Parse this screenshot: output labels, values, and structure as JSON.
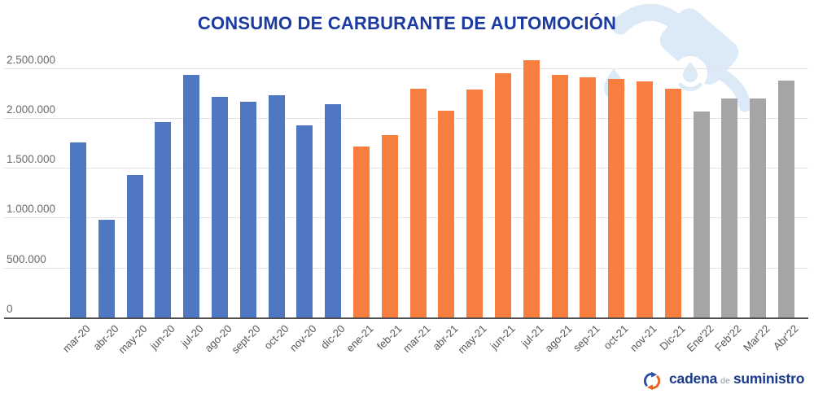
{
  "title": "CONSUMO DE CARBURANTE DE AUTOMOCIÓN",
  "colors": {
    "title": "#1b3aa2",
    "bar_2020": "#5078c2",
    "bar_2021": "#f77e3e",
    "bar_2022": "#a5a5a5",
    "gridline": "#e4e4e4",
    "axis_line": "#4f4f4f",
    "y_label_text": "#6b6b6b",
    "x_label_text": "#565656",
    "watermark": "#dce9f6",
    "logo_blue": "#1a3a8c",
    "logo_gray": "#8c98a8",
    "logo_icon_blue": "#2d4ea3",
    "logo_icon_orange": "#e9631d"
  },
  "chart_data": {
    "type": "bar",
    "title": "CONSUMO DE CARBURANTE DE AUTOMOCIÓN",
    "xlabel": "",
    "ylabel": "",
    "ylim": [
      0,
      2500000
    ],
    "grid": true,
    "legend": "none",
    "y_ticks": [
      {
        "label": "2.500.000",
        "value": 2500000
      },
      {
        "label": "2.000.000",
        "value": 2000000
      },
      {
        "label": "1.500.000",
        "value": 1500000
      },
      {
        "label": "1.000.000",
        "value": 1000000
      },
      {
        "label": "500.000",
        "value": 500000
      },
      {
        "label": "0",
        "value": 0
      }
    ],
    "categories": [
      "mar-20",
      "abr-20",
      "may-20",
      "jun-20",
      "jul-20",
      "ago-20",
      "sept-20",
      "oct-20",
      "nov-20",
      "dic-20",
      "ene-21",
      "feb-21",
      "mar-21",
      "abr-21",
      "may-21",
      "jun-21",
      "jul-21",
      "ago-21",
      "sep-21",
      "oct-21",
      "nov-21",
      "Dic-21",
      "Ene'22",
      "Feb'22",
      "Mar'22",
      "Abr'22"
    ],
    "values": [
      1750000,
      975000,
      1430000,
      1960000,
      2430000,
      2210000,
      2160000,
      2230000,
      1925000,
      2135000,
      1710000,
      1825000,
      2290000,
      2070000,
      2280000,
      2450000,
      2580000,
      2430000,
      2410000,
      2390000,
      2365000,
      2290000,
      2060000,
      2195000,
      2195000,
      2370000
    ],
    "groups": [
      "2020",
      "2020",
      "2020",
      "2020",
      "2020",
      "2020",
      "2020",
      "2020",
      "2020",
      "2020",
      "2021",
      "2021",
      "2021",
      "2021",
      "2021",
      "2021",
      "2021",
      "2021",
      "2021",
      "2021",
      "2021",
      "2021",
      "2022",
      "2022",
      "2022",
      "2022"
    ],
    "group_colors": {
      "2020": "bar_2020",
      "2021": "bar_2021",
      "2022": "bar_2022"
    }
  },
  "watermark": {
    "icon": "fuel-nozzle-icon"
  },
  "footer_logo": {
    "icon": "cycle-arrows-icon",
    "word1": "cadena",
    "word2": "de",
    "word3": "suministro"
  }
}
